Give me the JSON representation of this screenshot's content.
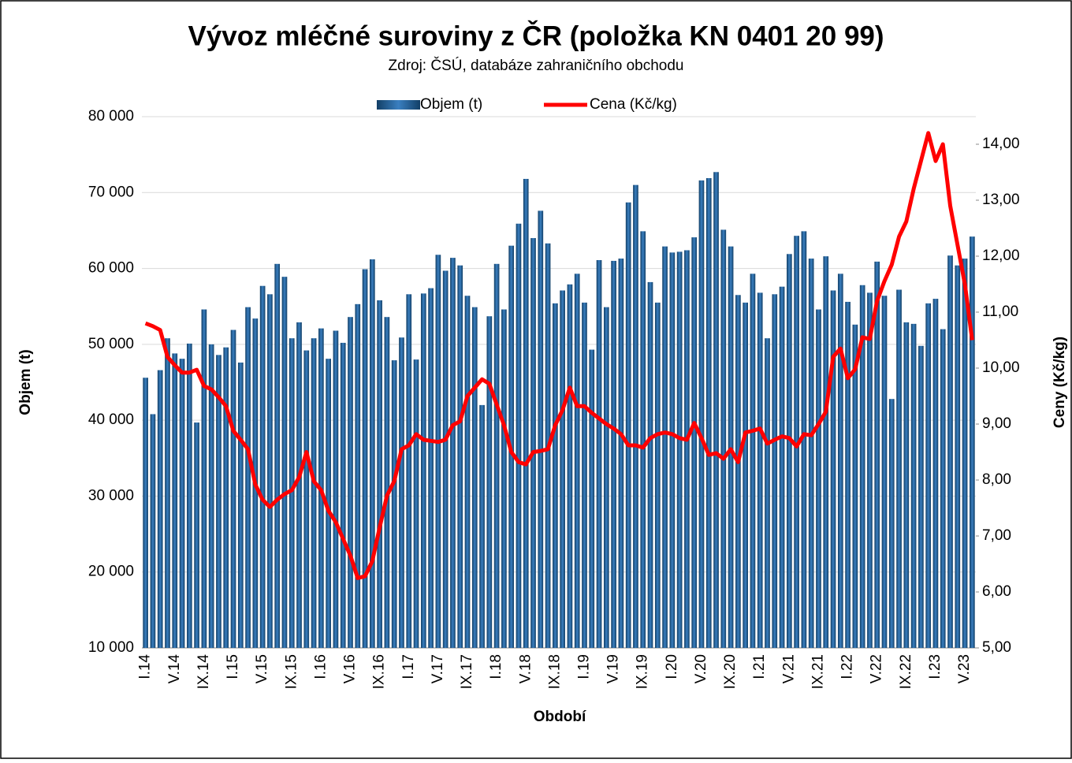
{
  "chart_data": {
    "type": "bar_line",
    "title": "Vývoz mléčné suroviny z ČR (položka KN 0401 20 99)",
    "subtitle": "Zdroj: ČSÚ, databáze zahraničního obchodu",
    "x_label": "Období",
    "y_label": "Objem (t)",
    "y2_label": "Ceny (Kč/kg)",
    "categories": [
      "I.14",
      null,
      null,
      null,
      "V.14",
      null,
      null,
      null,
      "IX.14",
      null,
      null,
      null,
      "I.15",
      null,
      null,
      null,
      "V.15",
      null,
      null,
      null,
      "IX.15",
      null,
      null,
      null,
      "I.16",
      null,
      null,
      null,
      "V.16",
      null,
      null,
      null,
      "IX.16",
      null,
      null,
      null,
      "I.17",
      null,
      null,
      null,
      "V.17",
      null,
      null,
      null,
      "IX.17",
      null,
      null,
      null,
      "I.18",
      null,
      null,
      null,
      "V.18",
      null,
      null,
      null,
      "IX.18",
      null,
      null,
      null,
      "I.19",
      null,
      null,
      null,
      "V.19",
      null,
      null,
      null,
      "IX.19",
      null,
      null,
      null,
      "I.20",
      null,
      null,
      null,
      "V.20",
      null,
      null,
      null,
      "IX.20",
      null,
      null,
      null,
      "I.21",
      null,
      null,
      null,
      "V.21",
      null,
      null,
      null,
      "IX.21",
      null,
      null,
      null,
      "I.22",
      null,
      null,
      null,
      "V.22",
      null,
      null,
      null,
      "IX.22",
      null,
      null,
      null,
      "I.23",
      null,
      null,
      null,
      "V.23",
      null
    ],
    "series": [
      {
        "name": "Objem (t)",
        "color": "#1f5a8c",
        "kind": "bar",
        "values": [
          45600,
          40800,
          46600,
          50800,
          48800,
          48100,
          50100,
          39700,
          54600,
          50000,
          48600,
          49600,
          51900,
          47600,
          54900,
          53400,
          57700,
          56600,
          60600,
          58900,
          50800,
          52900,
          49200,
          50800,
          52100,
          48100,
          51800,
          50200,
          53600,
          55300,
          59900,
          61200,
          55800,
          53600,
          47900,
          50900,
          56600,
          48000,
          56700,
          57400,
          61800,
          59700,
          61400,
          60400,
          56400,
          54900,
          42000,
          53700,
          60600,
          54600,
          63000,
          65900,
          71800,
          64000,
          67600,
          63300,
          55400,
          57100,
          57900,
          59300,
          55500,
          49300,
          61100,
          54900,
          61000,
          61300,
          68700,
          71000,
          64900,
          58200,
          55500,
          62900,
          62100,
          62200,
          62400,
          64100,
          71600,
          71900,
          72700,
          65100,
          62900,
          56500,
          55500,
          59300,
          56800,
          50800,
          56600,
          57600,
          61900,
          64300,
          64900,
          61300,
          54600,
          61600,
          57100,
          59300,
          55600,
          52600,
          57800,
          56800,
          60900,
          56400,
          42800,
          57200,
          52900,
          52700,
          49800,
          55400,
          56000,
          52000,
          61700,
          60400,
          61300,
          64200
        ]
      },
      {
        "name": "Cena (Kč/kg)",
        "color": "#ff0000",
        "kind": "line",
        "axis": "y2",
        "values": [
          10.8,
          10.75,
          10.68,
          10.2,
          10.05,
          9.92,
          9.92,
          9.97,
          9.68,
          9.62,
          9.48,
          9.32,
          8.88,
          8.72,
          8.55,
          7.92,
          7.65,
          7.52,
          7.65,
          7.75,
          7.82,
          8.05,
          8.5,
          7.98,
          7.82,
          7.45,
          7.25,
          6.95,
          6.65,
          6.25,
          6.28,
          6.55,
          7.15,
          7.72,
          7.98,
          8.55,
          8.62,
          8.82,
          8.72,
          8.7,
          8.68,
          8.72,
          8.98,
          9.05,
          9.5,
          9.65,
          9.8,
          9.72,
          9.35,
          8.98,
          8.5,
          8.32,
          8.28,
          8.5,
          8.52,
          8.55,
          8.98,
          9.25,
          9.65,
          9.32,
          9.32,
          9.2,
          9.1,
          9.0,
          8.92,
          8.82,
          8.62,
          8.62,
          8.58,
          8.75,
          8.82,
          8.85,
          8.82,
          8.75,
          8.72,
          9.02,
          8.75,
          8.45,
          8.48,
          8.38,
          8.55,
          8.32,
          8.85,
          8.88,
          8.92,
          8.65,
          8.72,
          8.78,
          8.75,
          8.6,
          8.82,
          8.8,
          9.0,
          9.22,
          10.2,
          10.35,
          9.82,
          9.98,
          10.55,
          10.52,
          11.2,
          11.55,
          11.85,
          12.35,
          12.62,
          13.2,
          13.7,
          14.2,
          13.7,
          14.0,
          12.9,
          12.2,
          11.5,
          10.5
        ]
      }
    ],
    "ylim": [
      10000,
      80000
    ],
    "yticks": [
      {
        "value": 10000,
        "label": "10 000"
      },
      {
        "value": 20000,
        "label": "20 000"
      },
      {
        "value": 30000,
        "label": "30 000"
      },
      {
        "value": 40000,
        "label": "40 000"
      },
      {
        "value": 50000,
        "label": "50 000"
      },
      {
        "value": 60000,
        "label": "60 000"
      },
      {
        "value": 70000,
        "label": "70 000"
      },
      {
        "value": 80000,
        "label": "80 000"
      }
    ],
    "y2lim": [
      5,
      14.5
    ],
    "y2ticks": [
      {
        "value": 5,
        "label": "5,00"
      },
      {
        "value": 6,
        "label": "6,00"
      },
      {
        "value": 7,
        "label": "7,00"
      },
      {
        "value": 8,
        "label": "8,00"
      },
      {
        "value": 9,
        "label": "9,00"
      },
      {
        "value": 10,
        "label": "10,00"
      },
      {
        "value": 11,
        "label": "11,00"
      },
      {
        "value": 12,
        "label": "12,00"
      },
      {
        "value": 13,
        "label": "13,00"
      },
      {
        "value": 14,
        "label": "14,00"
      }
    ],
    "grid": true,
    "legend": "top"
  }
}
